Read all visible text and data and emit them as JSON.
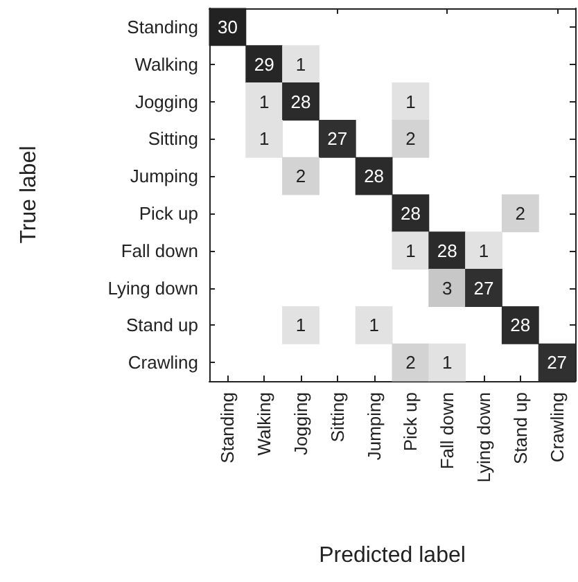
{
  "chart_data": {
    "type": "heatmap",
    "xlabel": "Predicted label",
    "ylabel": "True label",
    "categories": [
      "Standing",
      "Walking",
      "Jogging",
      "Sitting",
      "Jumping",
      "Pick up",
      "Fall down",
      "Lying down",
      "Stand up",
      "Crawling"
    ],
    "y_categories": [
      "Standing",
      "Walking",
      "Jogging",
      "Sitting",
      "Jumping",
      "Pick up",
      "Fall down",
      "Lying down",
      "Stand up",
      "Crawling"
    ],
    "cells": [
      [
        30,
        null,
        null,
        null,
        null,
        null,
        null,
        null,
        null,
        null
      ],
      [
        null,
        29,
        1,
        null,
        null,
        null,
        null,
        null,
        null,
        null
      ],
      [
        null,
        1,
        28,
        null,
        null,
        1,
        null,
        null,
        null,
        null
      ],
      [
        null,
        1,
        null,
        27,
        null,
        2,
        null,
        null,
        null,
        null
      ],
      [
        null,
        null,
        2,
        null,
        28,
        null,
        null,
        null,
        null,
        null
      ],
      [
        null,
        null,
        null,
        null,
        null,
        28,
        null,
        null,
        2,
        null
      ],
      [
        null,
        null,
        null,
        null,
        null,
        1,
        28,
        1,
        null,
        null
      ],
      [
        null,
        null,
        null,
        null,
        null,
        null,
        3,
        27,
        null,
        null
      ],
      [
        null,
        null,
        1,
        null,
        1,
        null,
        null,
        null,
        28,
        null
      ],
      [
        null,
        null,
        null,
        null,
        null,
        2,
        1,
        null,
        null,
        27
      ]
    ],
    "data_labels": true
  }
}
